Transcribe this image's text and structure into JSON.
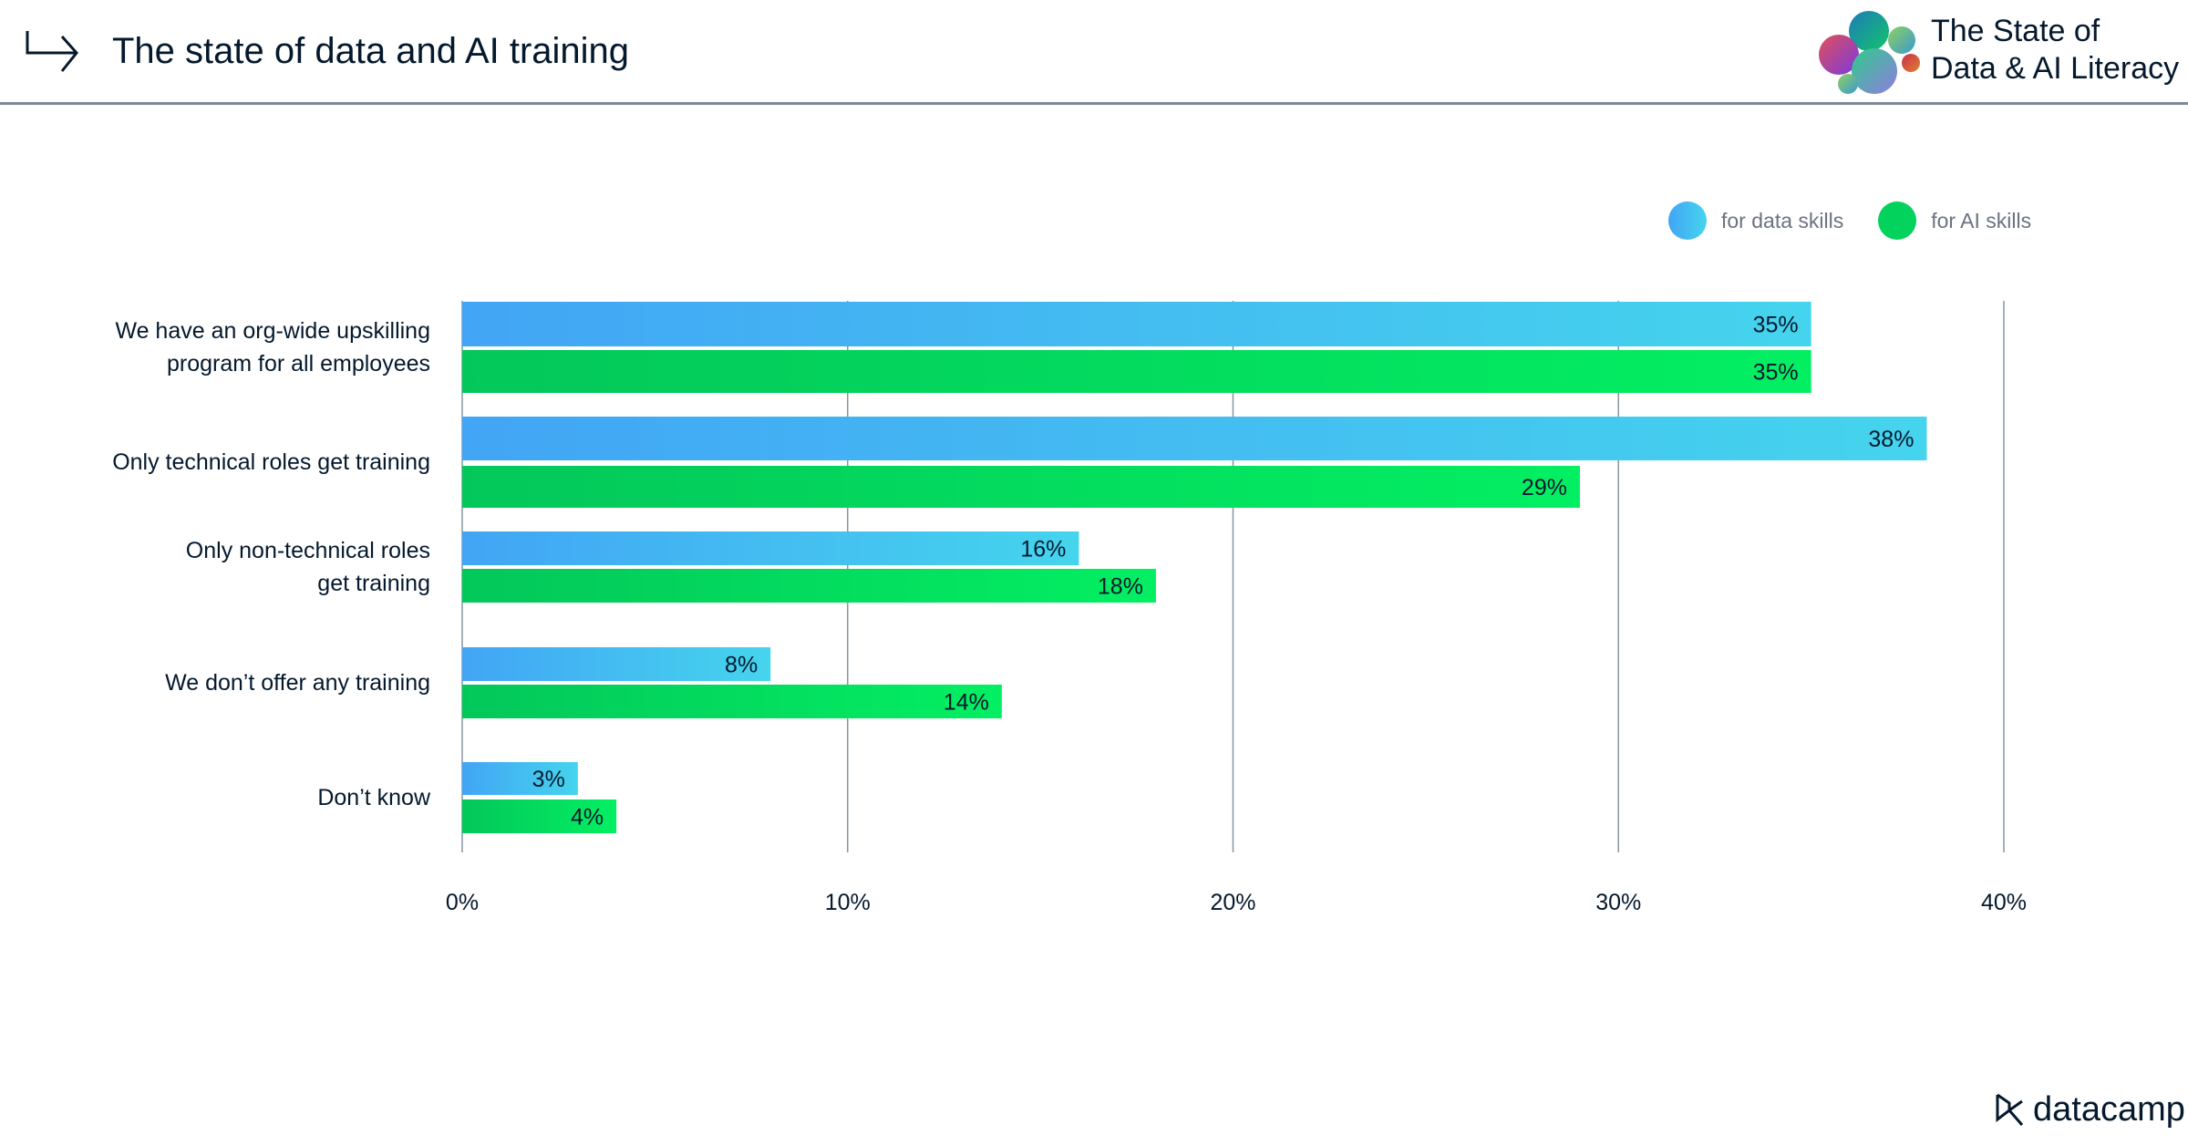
{
  "header": {
    "title": "The state of data and AI training",
    "icon": "arrow-turn-right-icon"
  },
  "brand": {
    "line1": "The State of",
    "line2": "Data & AI Literacy",
    "footer_logo": "datacamp"
  },
  "chart_data": {
    "type": "bar",
    "orientation": "horizontal",
    "categories": [
      [
        "We have an org-wide upskilling",
        "program for all employees"
      ],
      [
        "Only technical roles get training"
      ],
      [
        "Only non-technical roles",
        "get training"
      ],
      [
        "We don’t offer any training"
      ],
      [
        "Don’t know"
      ]
    ],
    "series": [
      {
        "name": "for data skills",
        "values": [
          35,
          38,
          16,
          8,
          3
        ],
        "labels": [
          "35%",
          "38%",
          "16%",
          "8%",
          "3%"
        ],
        "color_from": "#42a5f5",
        "color_to": "#45d4ed"
      },
      {
        "name": "for AI skills",
        "values": [
          35,
          29,
          18,
          14,
          4
        ],
        "labels": [
          "35%",
          "29%",
          "18%",
          "14%",
          "4%"
        ],
        "color_from": "#03c75a",
        "color_to": "#03ef62"
      }
    ],
    "xlim": [
      0,
      40
    ],
    "xticks": [
      "0%",
      "10%",
      "20%",
      "30%",
      "40%"
    ],
    "grid": true,
    "legend": "top-right"
  }
}
